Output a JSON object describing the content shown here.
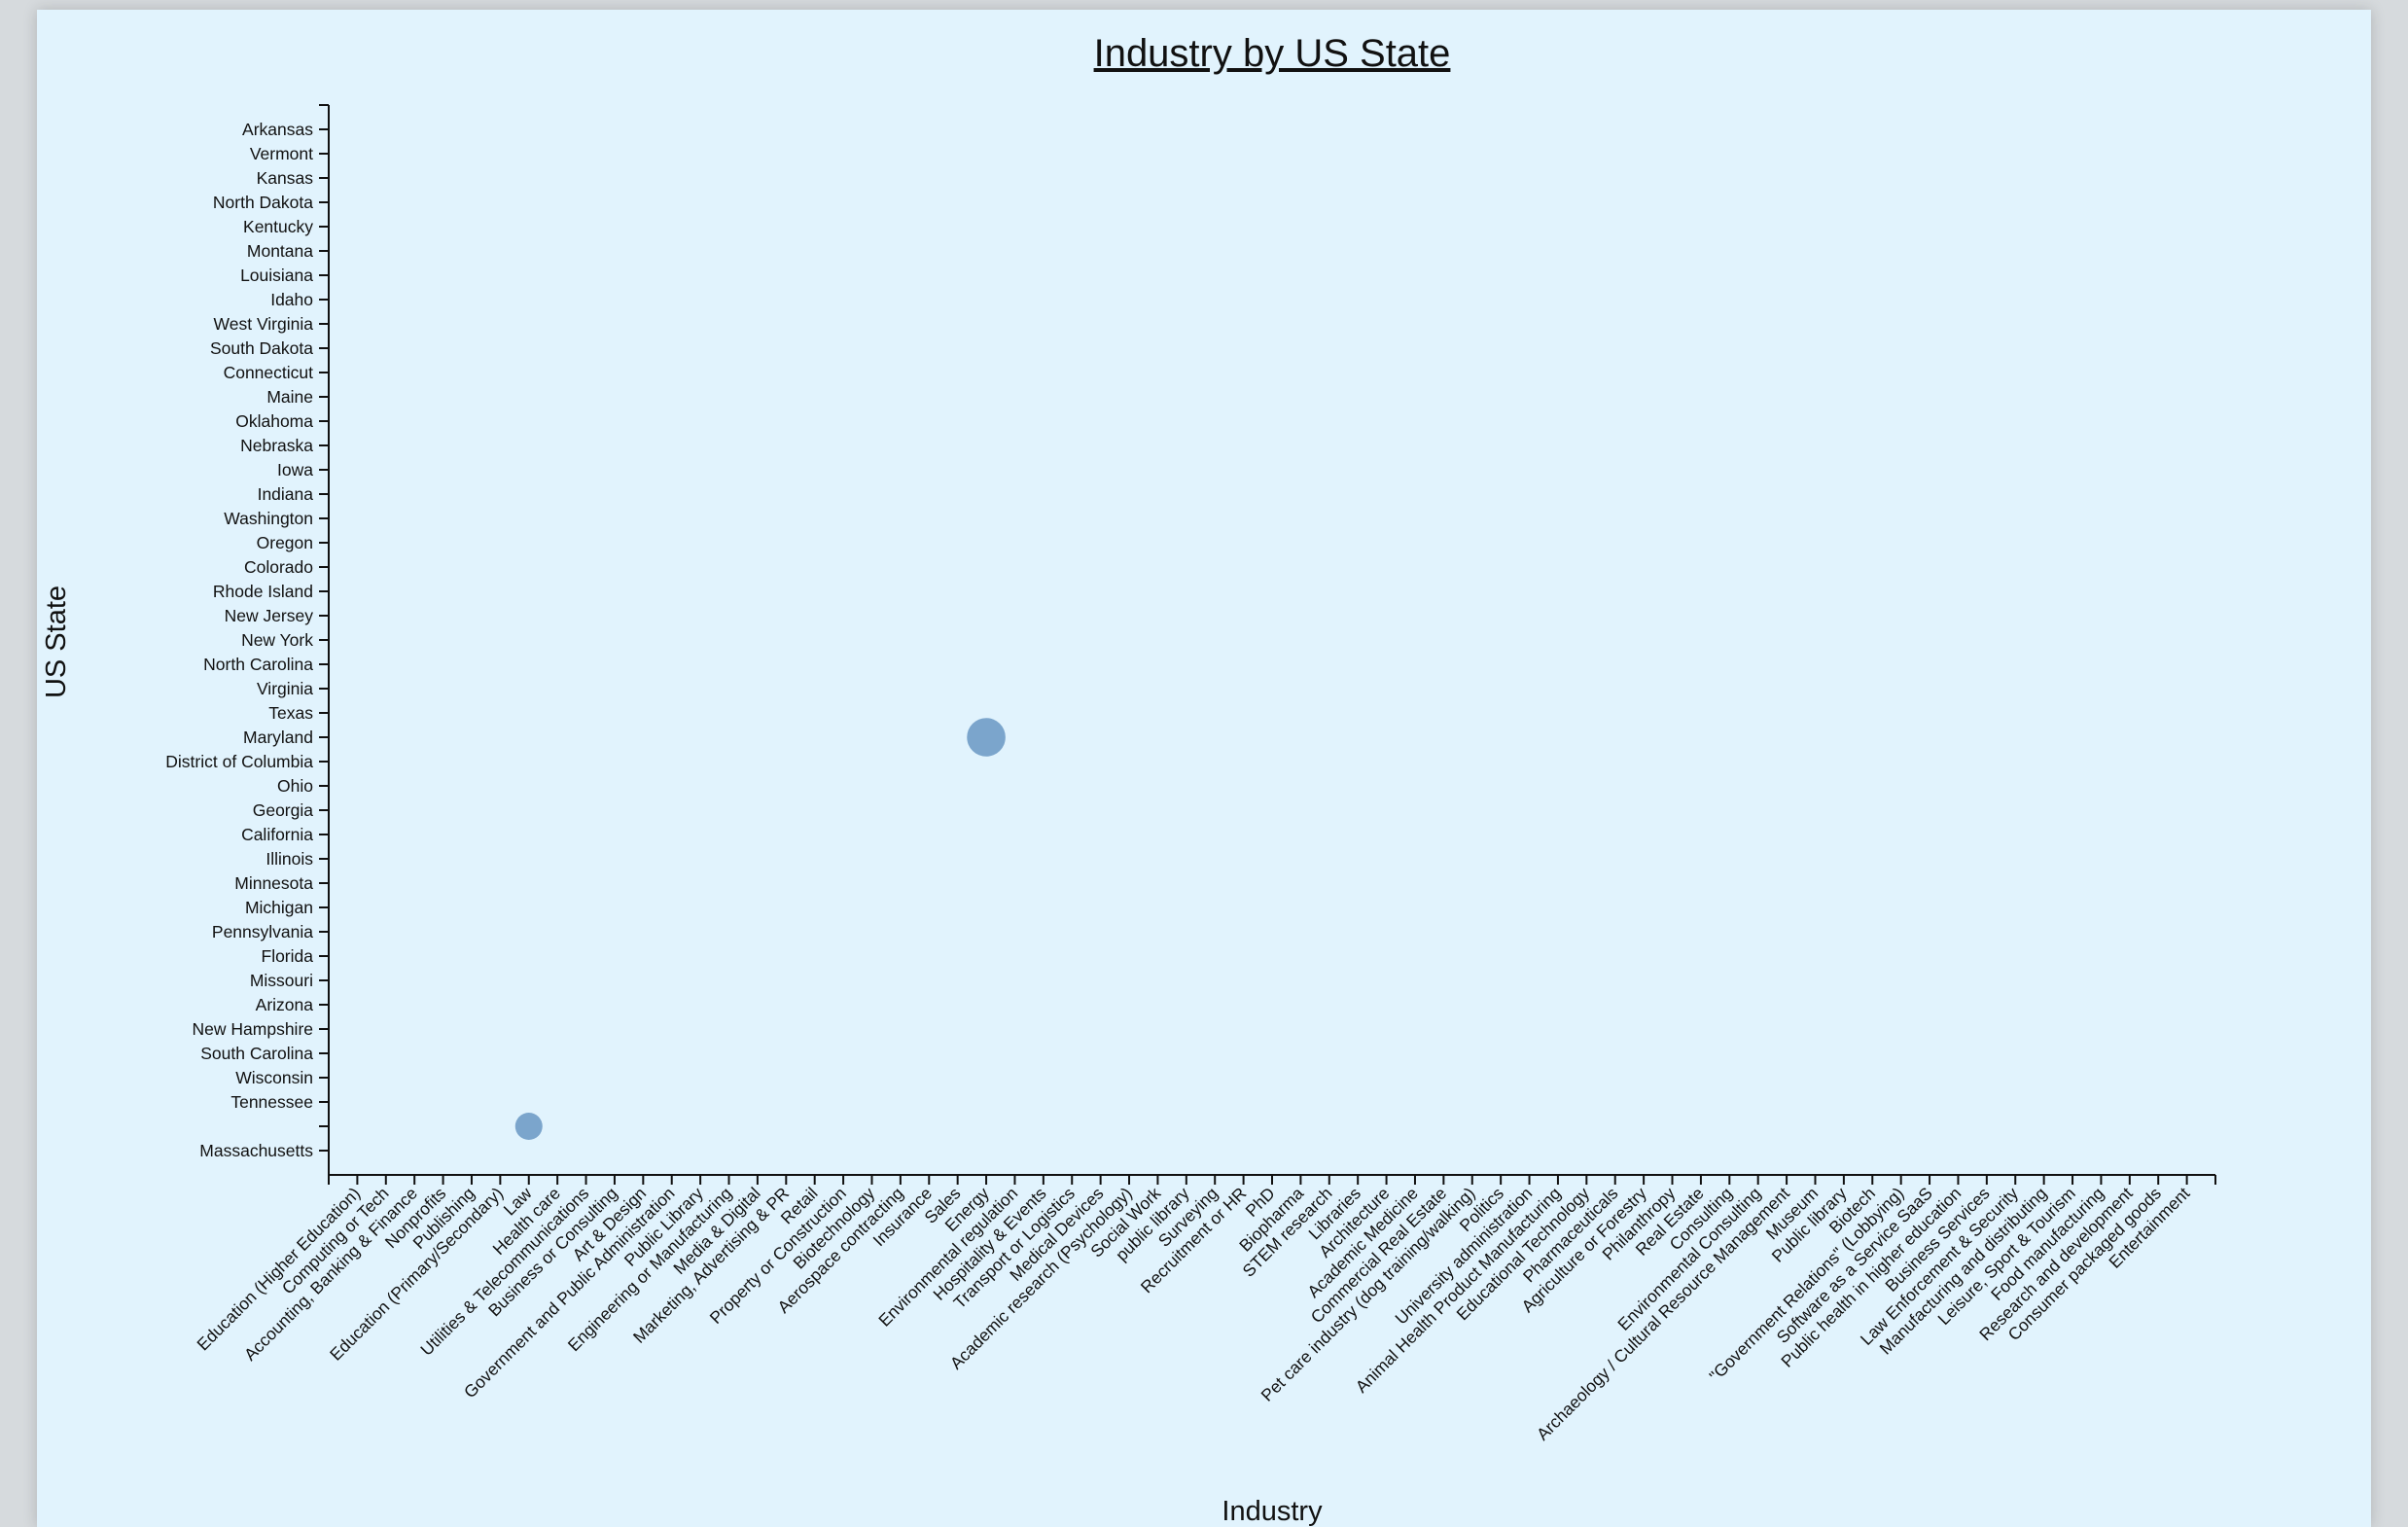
{
  "chart_data": {
    "type": "scatter",
    "title": "Industry by US State",
    "xlabel": "Industry",
    "ylabel": "US State",
    "grid": false,
    "legend": "none",
    "bubble_color": "#7ba5cc",
    "categories_x": [
      "Education (Higher Education)",
      "Computing or Tech",
      "Accounting, Banking & Finance",
      "Nonprofits",
      "Publishing",
      "Education (Primary/Secondary)",
      "Law",
      "Health care",
      "Utilities & Telecommunications",
      "Business or Consulting",
      "Art & Design",
      "Government and Public Administration",
      "Public Library",
      "Engineering or Manufacturing",
      "Media & Digital",
      "Marketing, Advertising & PR",
      "Retail",
      "Property or Construction",
      "Biotechnology",
      "Aerospace contracting",
      "Insurance",
      "Sales",
      "Energy",
      "Environmental regulation",
      "Hospitality & Events",
      "Transport or Logistics",
      "Medical Devices",
      "Academic research (Psychology)",
      "Social Work",
      "public library",
      "Surveying",
      "Recruitment or HR",
      "PhD",
      "Biopharma",
      "STEM research",
      "Libraries",
      "Architecture",
      "Academic Medicine",
      "Commercial Real Estate",
      "Pet care industry (dog training/walking)",
      "Politics",
      "University administration",
      "Animal Health Product Manufacturing",
      "Educational Technology",
      "Pharmaceuticals",
      "Agriculture or Forestry",
      "Philanthropy",
      "Real Estate",
      "Consulting",
      "Environmental Consulting",
      "Archaeology / Cultural Resource Management",
      "Museum",
      "Public library",
      "Biotech",
      "\"Government Relations\" (Lobbying)",
      "Software as a Service SaaS",
      "Public health in higher education",
      "Business Services",
      "Law Enforcement & Security",
      "Manufacturing and distributing",
      "Leisure, Sport & Tourism",
      "Food manufacturing",
      "Research and development",
      "Consumer packaged goods",
      "Entertainment"
    ],
    "categories_y": [
      "Arkansas",
      "Vermont",
      "Kansas",
      "North Dakota",
      "Kentucky",
      "Montana",
      "Louisiana",
      "Idaho",
      "West Virginia",
      "South Dakota",
      "Connecticut",
      "Maine",
      "Oklahoma",
      "Nebraska",
      "Iowa",
      "Indiana",
      "Washington",
      "Oregon",
      "Colorado",
      "Rhode Island",
      "New Jersey",
      "New York",
      "North Carolina",
      "Virginia",
      "Texas",
      "Maryland",
      "District of Columbia",
      "Ohio",
      "Georgia",
      "California",
      "Illinois",
      "Minnesota",
      "Michigan",
      "Pennsylvania",
      "Florida",
      "Missouri",
      "Arizona",
      "New Hampshire",
      "South Carolina",
      "Wisconsin",
      "Tennessee",
      "",
      "Massachusetts"
    ],
    "points": [
      {
        "x": "Energy",
        "y": "Maryland",
        "size": 2
      },
      {
        "x": "Law",
        "y": "",
        "size": 1
      }
    ]
  }
}
